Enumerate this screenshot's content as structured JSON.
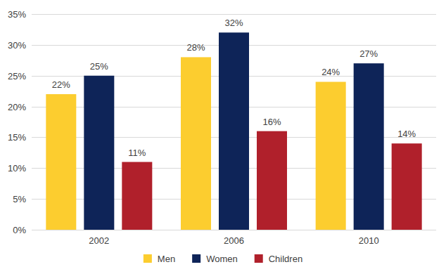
{
  "chart_data": {
    "type": "bar",
    "categories": [
      "2002",
      "2006",
      "2010"
    ],
    "series": [
      {
        "name": "Men",
        "color": "#fccd2f",
        "values": [
          22,
          28,
          24
        ],
        "value_labels": [
          "22%",
          "28%",
          "24%"
        ]
      },
      {
        "name": "Women",
        "color": "#0e2458",
        "values": [
          25,
          32,
          27
        ],
        "value_labels": [
          "25%",
          "32%",
          "27%"
        ]
      },
      {
        "name": "Children",
        "color": "#b0202b",
        "values": [
          11,
          16,
          14
        ],
        "value_labels": [
          "11%",
          "16%",
          "14%"
        ]
      }
    ],
    "ylim": [
      0,
      35
    ],
    "yticks": [
      {
        "value": 0,
        "label": "0%"
      },
      {
        "value": 5,
        "label": "5%"
      },
      {
        "value": 10,
        "label": "10%"
      },
      {
        "value": 15,
        "label": "15%"
      },
      {
        "value": 20,
        "label": "20%"
      },
      {
        "value": 25,
        "label": "25%"
      },
      {
        "value": 30,
        "label": "30%"
      },
      {
        "value": 35,
        "label": "35%"
      }
    ],
    "grid": true,
    "data_labels": true,
    "legend": "bottom"
  }
}
